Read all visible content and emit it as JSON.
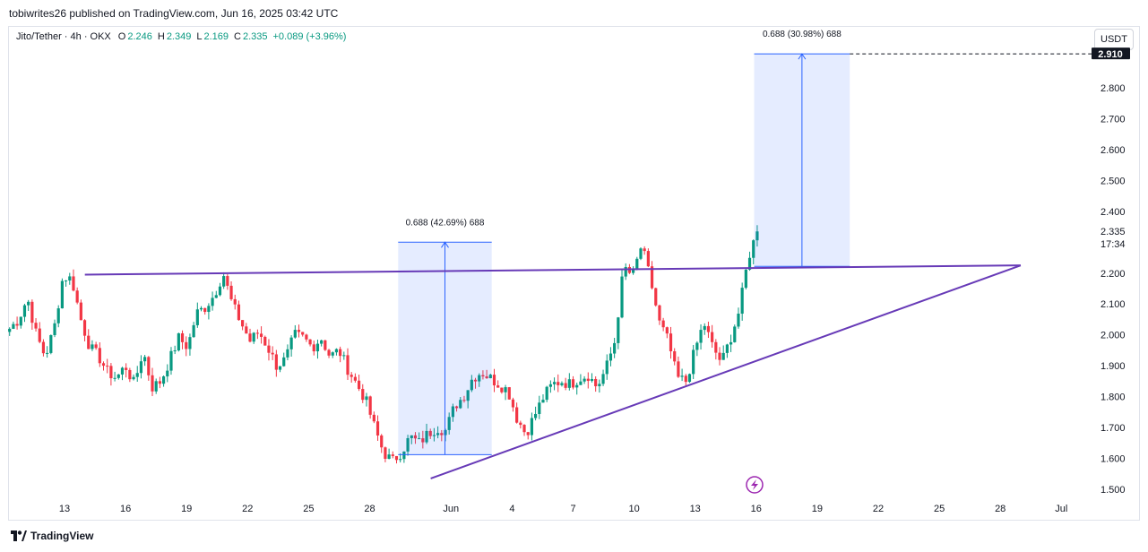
{
  "header": {
    "published": "tobiwrites26 published on TradingView.com, Jun 16, 2025 03:42 UTC"
  },
  "legend": {
    "symbol": "Jito/Tether · 4h · OKX",
    "open_label": "O",
    "open": "2.246",
    "high_label": "H",
    "high": "2.349",
    "low_label": "L",
    "low": "2.169",
    "close_label": "C",
    "close": "2.335",
    "change": "+0.089 (+3.96%)"
  },
  "toolbar": {
    "currency": "USDT"
  },
  "footer": {
    "brand": "TradingView",
    "logo_icon": "tradingview-logo-icon"
  },
  "chart_data": {
    "type": "candlestick",
    "ylim": [
      1.46,
      2.97
    ],
    "y_ticks": [
      "2.800",
      "2.700",
      "2.600",
      "2.500",
      "2.400",
      "2.200",
      "2.100",
      "2.000",
      "1.900",
      "1.800",
      "1.700",
      "1.600",
      "1.500"
    ],
    "y_tick_values": [
      2.8,
      2.7,
      2.6,
      2.5,
      2.4,
      2.2,
      2.1,
      2.0,
      1.9,
      1.8,
      1.7,
      1.6,
      1.5
    ],
    "x_ticks": [
      "13",
      "16",
      "19",
      "22",
      "25",
      "28",
      "Jun",
      "4",
      "7",
      "10",
      "13",
      "16",
      "19",
      "22",
      "25",
      "28",
      "Jul"
    ],
    "price_label": "2.335",
    "countdown": "17:34",
    "target_label": "2.910",
    "colors": {
      "up": "#089981",
      "down": "#f23645",
      "pattern": "#673ab7",
      "measure": "#2962ff"
    },
    "candles": {
      "up_color": "#089981",
      "down_color": "#f23645",
      "path": [
        2.02,
        2.05,
        2.12,
        2.0,
        1.93,
        2.02,
        2.19,
        2.18,
        2.05,
        1.96,
        1.93,
        1.88,
        1.86,
        1.9,
        1.84,
        1.95,
        1.83,
        1.85,
        1.92,
        1.99,
        1.96,
        2.07,
        2.09,
        2.13,
        2.2,
        2.1,
        2.04,
        1.98,
        2.01,
        1.96,
        1.9,
        1.92,
        2.0,
        1.99,
        1.96,
        1.99,
        1.93,
        1.95,
        1.89,
        1.84,
        1.79,
        1.7,
        1.62,
        1.59,
        1.62,
        1.67,
        1.65,
        1.68,
        1.7,
        1.69,
        1.77,
        1.8,
        1.86,
        1.88,
        1.86,
        1.84,
        1.82,
        1.73,
        1.68,
        1.74,
        1.8,
        1.84,
        1.85,
        1.84,
        1.86,
        1.87,
        1.83,
        1.89,
        1.98,
        2.22,
        2.19,
        2.29,
        2.18,
        2.04,
        1.98,
        1.86,
        1.85,
        1.95,
        2.04,
        1.96,
        1.91,
        1.99,
        2.08,
        2.25,
        2.335
      ],
      "bar_count": 200
    },
    "trendlines": [
      {
        "name": "resistance",
        "from": [
          "May 14",
          2.195
        ],
        "to": [
          "Jun 29",
          2.225
        ]
      },
      {
        "name": "support",
        "from": [
          "May 31",
          1.535
        ],
        "to": [
          "Jun 29",
          2.225
        ]
      }
    ],
    "measurements": [
      {
        "label": "0.688 (42.69%) 688",
        "from": 1.612,
        "to": 2.3
      },
      {
        "label": "0.688 (30.98%) 688",
        "from": 2.222,
        "to": 2.91
      }
    ]
  }
}
